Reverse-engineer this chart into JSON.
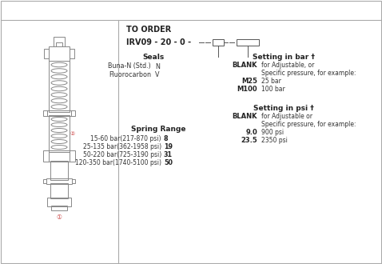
{
  "bg_color": "#ffffff",
  "border_color": "#aaaaaa",
  "text_color_dark": "#222222",
  "text_color_mid": "#444444",
  "title": "TO ORDER",
  "model_code": "IRV09 - 20 - 0 -",
  "seals_label": "Seals",
  "seals_items": [
    {
      "label": "Buna-N (Std.)",
      "code": "N"
    },
    {
      "label": "Fluorocarbon",
      "code": "V"
    }
  ],
  "spring_range_label": "Spring Range",
  "spring_items": [
    {
      "range": "15-60 bar(217-870 psi)",
      "code": "8"
    },
    {
      "range": "25-135 bar(362-1958 psi)",
      "code": "19"
    },
    {
      "range": "50-220 bar(725-3190 psi)",
      "code": "31"
    },
    {
      "range": "120-350 bar(1740-5100 psi)",
      "code": "50"
    }
  ],
  "bar_setting_label": "Setting in bar †",
  "bar_setting_items": [
    {
      "code": "BLANK",
      "desc": "for Adjustable, or"
    },
    {
      "code": "",
      "desc": "Specific pressure, for example:"
    },
    {
      "code": "M25",
      "desc": "25 bar"
    },
    {
      "code": "M100",
      "desc": "100 bar"
    }
  ],
  "psi_setting_label": "Setting in psi †",
  "psi_setting_items": [
    {
      "code": "BLANK",
      "desc": "for Adjustable or"
    },
    {
      "code": "",
      "desc": "Specific pressure, for example:"
    },
    {
      "code": "9.0",
      "desc": "900 psi"
    },
    {
      "code": "23.5",
      "desc": "2350 psi"
    }
  ],
  "valve_color": "#888888",
  "label1": "①",
  "label2": "②"
}
